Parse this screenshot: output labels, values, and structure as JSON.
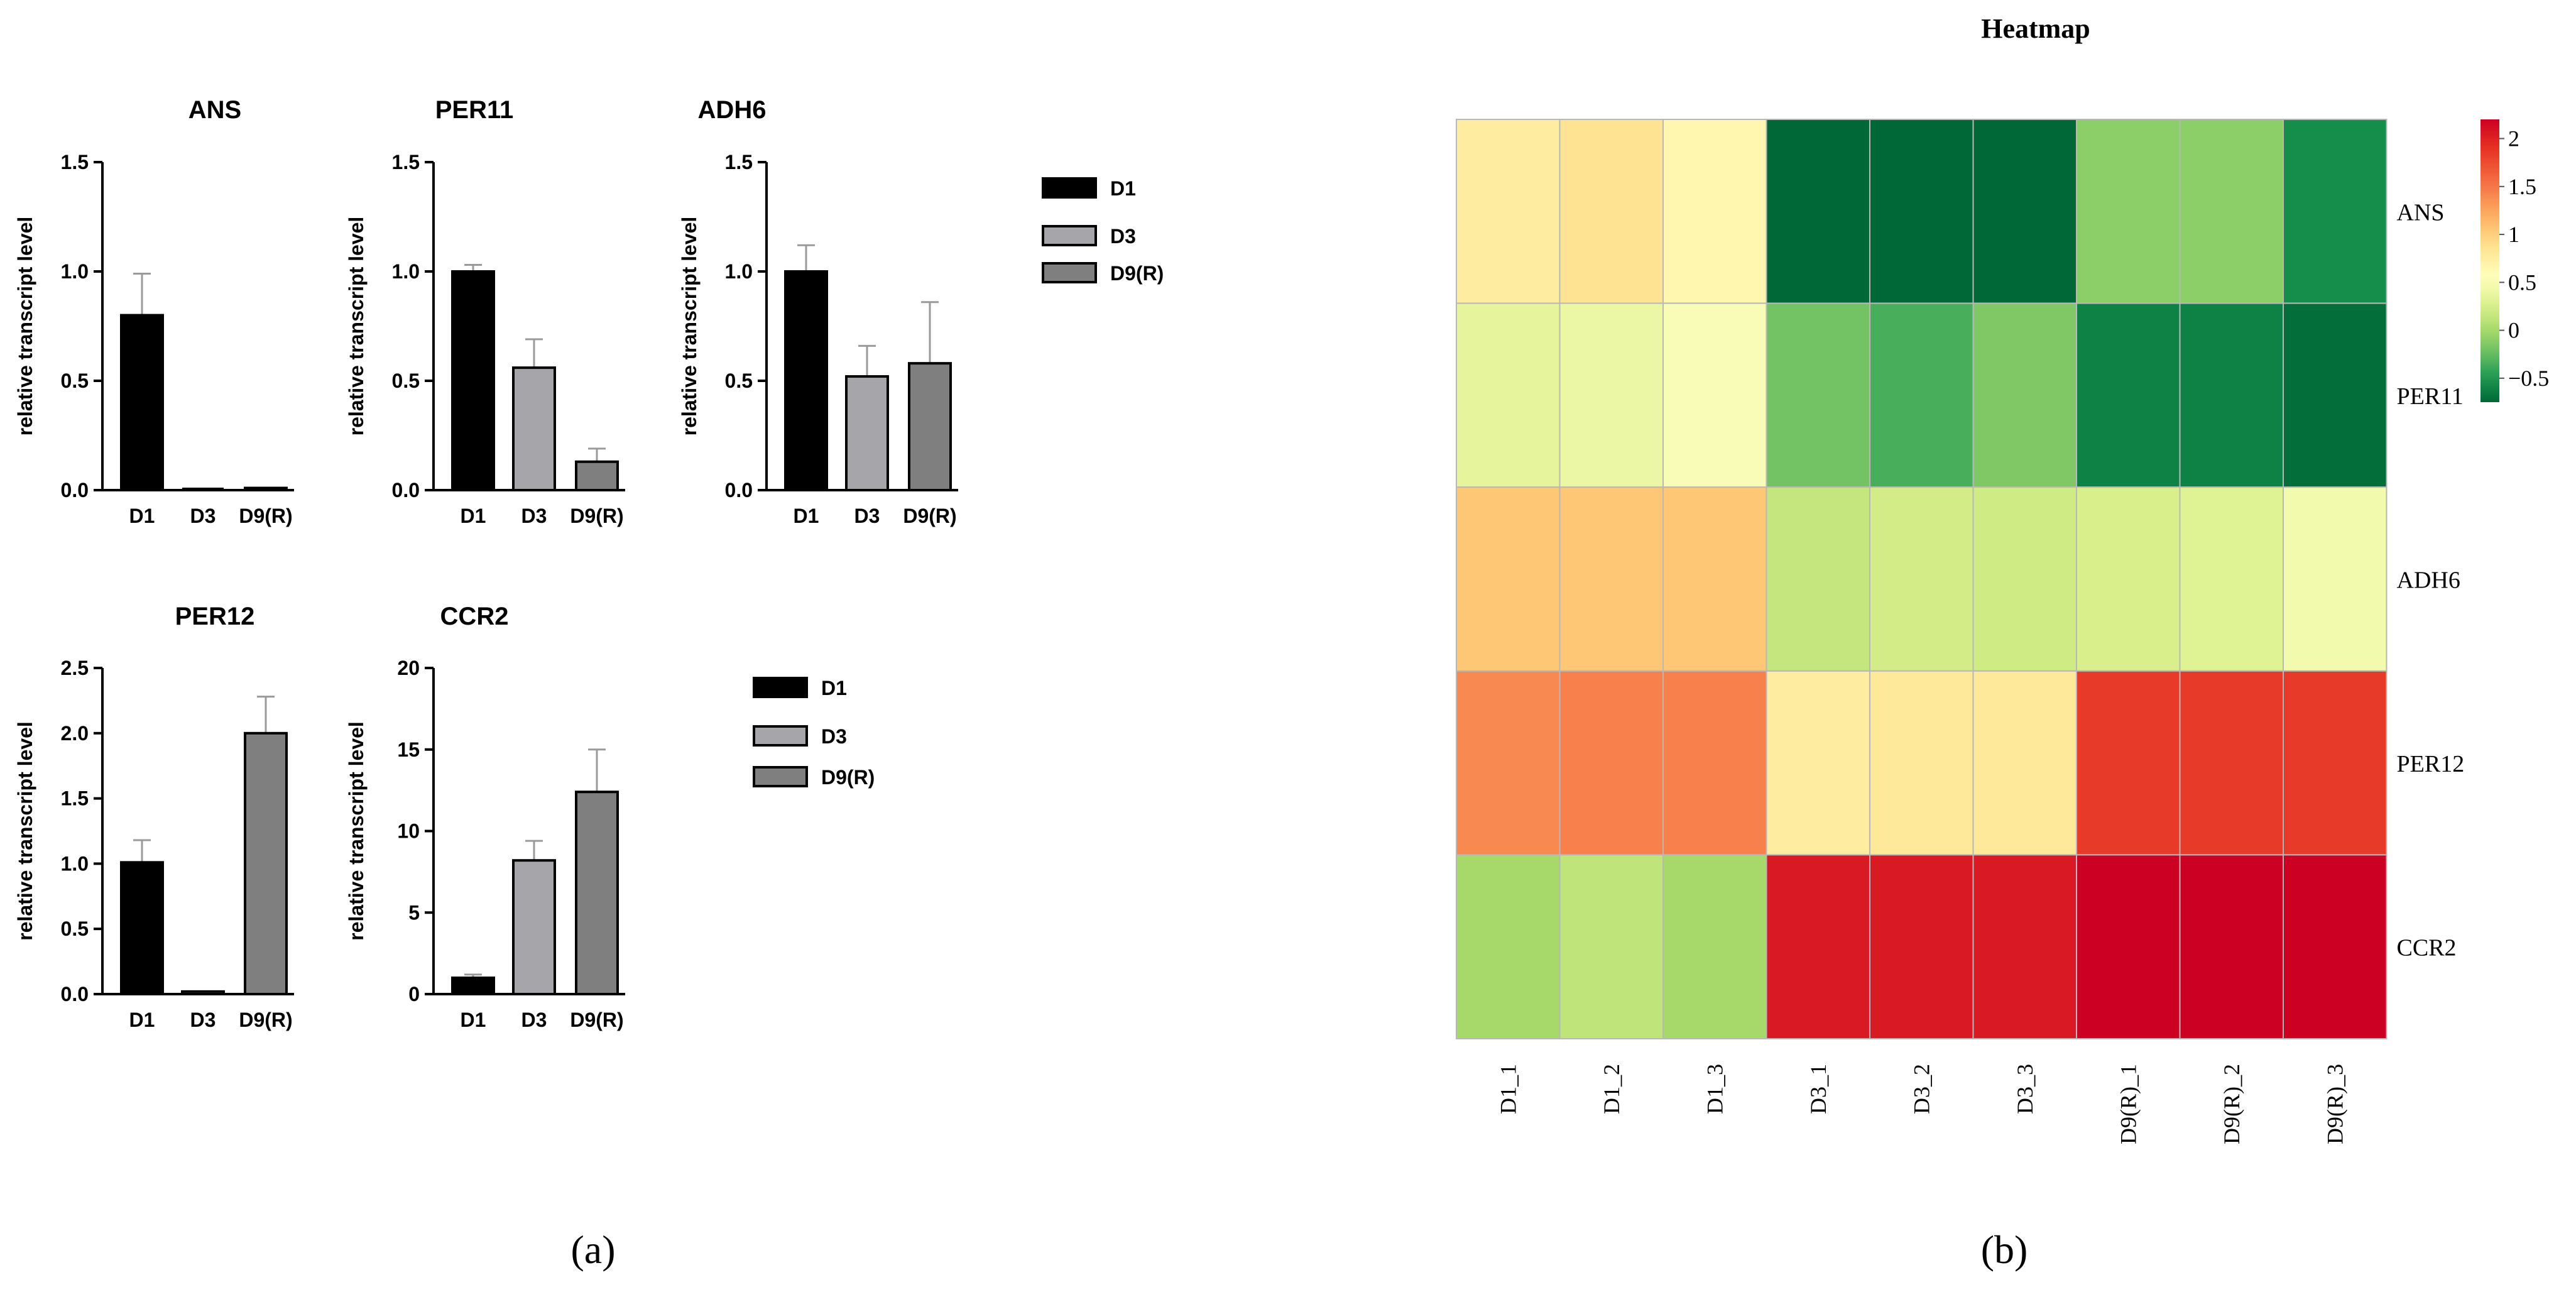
{
  "figure": {
    "label_a": "(a)",
    "label_b": "(b)"
  },
  "colors": {
    "D1": "#000000",
    "D3": "#a6a6aa",
    "D9(R)": "#7f7f7f",
    "error_bar": "#9a9a9a",
    "heatmap_low": "#006837",
    "heatmap_mid": "#ffffbf",
    "heatmap_high": "#cc0022"
  },
  "legend_bar": {
    "entries": [
      "D1",
      "D3",
      "D9(R)"
    ]
  },
  "chart_data": [
    {
      "type": "bar",
      "id": "ans",
      "title": "ANS",
      "ylabel": "relative transcript level",
      "categories": [
        "D1",
        "D3",
        "D9(R)"
      ],
      "values": [
        0.8,
        0.0,
        0.01
      ],
      "errors": [
        0.19,
        0.0,
        0.0
      ],
      "ylim": [
        0,
        1.5
      ],
      "yticks": [
        "0.0",
        "0.5",
        "1.0",
        "1.5"
      ],
      "ytick_values": [
        0,
        0.5,
        1.0,
        1.5
      ]
    },
    {
      "type": "bar",
      "id": "per11",
      "title": "PER11",
      "ylabel": "relative transcript level",
      "categories": [
        "D1",
        "D3",
        "D9(R)"
      ],
      "values": [
        1.0,
        0.56,
        0.13
      ],
      "errors": [
        0.03,
        0.13,
        0.06
      ],
      "ylim": [
        0,
        1.5
      ],
      "yticks": [
        "0.0",
        "0.5",
        "1.0",
        "1.5"
      ],
      "ytick_values": [
        0,
        0.5,
        1.0,
        1.5
      ]
    },
    {
      "type": "bar",
      "id": "adh6",
      "title": "ADH6",
      "ylabel": "relative transcript level",
      "categories": [
        "D1",
        "D3",
        "D9(R)"
      ],
      "values": [
        1.0,
        0.52,
        0.58
      ],
      "errors": [
        0.12,
        0.14,
        0.28
      ],
      "ylim": [
        0,
        1.5
      ],
      "yticks": [
        "0.0",
        "0.5",
        "1.0",
        "1.5"
      ],
      "ytick_values": [
        0,
        0.5,
        1.0,
        1.5
      ]
    },
    {
      "type": "bar",
      "id": "per12",
      "title": "PER12",
      "ylabel": "relative transcript level",
      "categories": [
        "D1",
        "D3",
        "D9(R)"
      ],
      "values": [
        1.01,
        0.02,
        2.0
      ],
      "errors": [
        0.17,
        0.0,
        0.28
      ],
      "ylim": [
        0,
        2.5
      ],
      "yticks": [
        "0.0",
        "0.5",
        "1.0",
        "1.5",
        "2.0",
        "2.5"
      ],
      "ytick_values": [
        0,
        0.5,
        1.0,
        1.5,
        2.0,
        2.5
      ]
    },
    {
      "type": "bar",
      "id": "ccr2",
      "title": "CCR2",
      "ylabel": "relative transcript level",
      "categories": [
        "D1",
        "D3",
        "D9(R)"
      ],
      "values": [
        1.0,
        8.2,
        12.4
      ],
      "errors": [
        0.2,
        1.2,
        2.6
      ],
      "ylim": [
        0,
        20
      ],
      "yticks": [
        "0",
        "5",
        "10",
        "15",
        "20"
      ],
      "ytick_values": [
        0,
        5,
        10,
        15,
        20
      ]
    },
    {
      "type": "heatmap",
      "id": "heatmap",
      "title": "Heatmap",
      "rows": [
        "ANS",
        "PER11",
        "ADH6",
        "PER12",
        "CCR2"
      ],
      "columns": [
        "D1_1",
        "D1_2",
        "D1_3",
        "D3_1",
        "D3_2",
        "D3_3",
        "D9(R)_1",
        "D9(R)_2",
        "D9(R)_3"
      ],
      "values": [
        [
          0.75,
          0.85,
          0.65,
          -0.85,
          -0.85,
          -0.85,
          -0.1,
          -0.1,
          -0.55
        ],
        [
          0.35,
          0.4,
          0.5,
          -0.2,
          -0.35,
          -0.15,
          -0.62,
          -0.62,
          -0.72
        ],
        [
          1.05,
          1.05,
          1.05,
          0.15,
          0.22,
          0.2,
          0.25,
          0.3,
          0.45
        ],
        [
          1.4,
          1.45,
          1.45,
          0.75,
          0.8,
          0.8,
          1.85,
          1.85,
          1.85
        ],
        [
          0.0,
          0.12,
          0.0,
          2.05,
          2.05,
          2.05,
          2.2,
          2.2,
          2.2
        ]
      ],
      "colorbar": {
        "range": [
          -0.75,
          2.2
        ],
        "ticks": [
          "2",
          "1.5",
          "1",
          "0.5",
          "0",
          "−0.5"
        ],
        "tick_values": [
          2,
          1.5,
          1,
          0.5,
          0,
          -0.5
        ]
      }
    }
  ]
}
